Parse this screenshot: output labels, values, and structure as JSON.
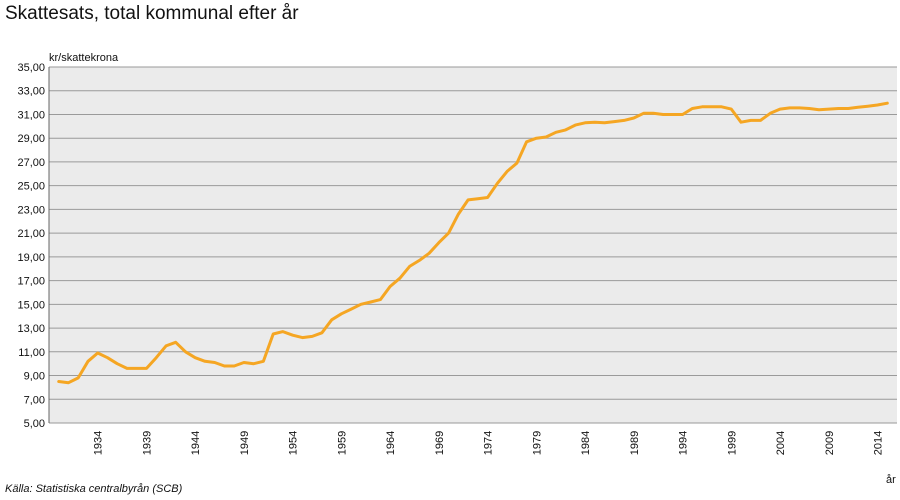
{
  "title": "Skattesats, total kommunal efter år",
  "source": "Källa: Statistiska centralbyrån (SCB)",
  "chart_data": {
    "type": "line",
    "title": "Skattesats, total kommunal efter år",
    "ylabel": "kr/skattekrona",
    "xlabel": "år",
    "ylim": [
      5,
      35
    ],
    "xlim": [
      1929,
      2016
    ],
    "yticks": [
      "5,00",
      "7,00",
      "9,00",
      "11,00",
      "13,00",
      "15,00",
      "17,00",
      "19,00",
      "21,00",
      "23,00",
      "25,00",
      "27,00",
      "29,00",
      "31,00",
      "33,00",
      "35,00"
    ],
    "xticks": [
      "1934",
      "1939",
      "1944",
      "1949",
      "1954",
      "1959",
      "1964",
      "1969",
      "1974",
      "1979",
      "1984",
      "1989",
      "1994",
      "1999",
      "2004",
      "2009",
      "2014"
    ],
    "grid": true,
    "line_color": "#f5a623",
    "plot_background": "#ebebeb",
    "series": [
      {
        "x": [
          1930,
          1931,
          1932,
          1933,
          1934,
          1935,
          1936,
          1937,
          1938,
          1939,
          1940,
          1941,
          1942,
          1943,
          1944,
          1945,
          1946,
          1947,
          1948,
          1949,
          1950,
          1951,
          1952,
          1953,
          1954,
          1955,
          1956,
          1957,
          1958,
          1959,
          1960,
          1961,
          1962,
          1963,
          1964,
          1965,
          1966,
          1967,
          1968,
          1969,
          1970,
          1971,
          1972,
          1973,
          1974,
          1975,
          1976,
          1977,
          1978,
          1979,
          1980,
          1981,
          1982,
          1983,
          1984,
          1985,
          1986,
          1987,
          1988,
          1989,
          1990,
          1991,
          1992,
          1993,
          1994,
          1995,
          1996,
          1997,
          1998,
          1999,
          2000,
          2001,
          2002,
          2003,
          2004,
          2005,
          2006,
          2007,
          2008,
          2009,
          2010,
          2011,
          2012,
          2013,
          2014,
          2015
        ],
        "y": [
          8.5,
          8.4,
          8.8,
          10.2,
          10.9,
          10.5,
          10.0,
          9.6,
          9.6,
          9.6,
          10.5,
          11.5,
          11.8,
          11.0,
          10.5,
          10.2,
          10.1,
          9.8,
          9.8,
          10.1,
          10.0,
          10.2,
          12.5,
          12.7,
          12.4,
          12.2,
          12.3,
          12.6,
          13.7,
          14.2,
          14.6,
          15.0,
          15.2,
          15.4,
          16.5,
          17.2,
          18.2,
          18.7,
          19.3,
          20.2,
          21.0,
          22.6,
          23.8,
          23.9,
          24.0,
          25.2,
          26.2,
          26.9,
          28.7,
          29.0,
          29.1,
          29.5,
          29.7,
          30.1,
          30.3,
          30.35,
          30.3,
          30.4,
          30.5,
          30.7,
          31.1,
          31.1,
          31.0,
          31.0,
          31.0,
          31.5,
          31.65,
          31.65,
          31.65,
          31.45,
          30.35,
          30.5,
          30.5,
          31.1,
          31.45,
          31.55,
          31.55,
          31.5,
          31.4,
          31.45,
          31.5,
          31.5,
          31.6,
          31.7,
          31.8,
          31.95
        ]
      }
    ]
  }
}
